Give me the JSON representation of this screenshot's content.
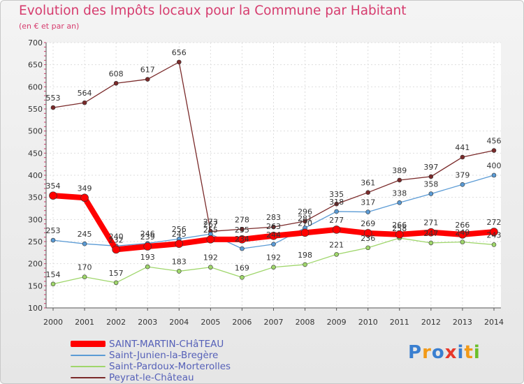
{
  "title": "Evolution des Impôts locaux pour la Commune par Habitant",
  "subtitle": "(en € et par an)",
  "logo": {
    "text": "Proxiti",
    "colors": [
      "#3a7fd0",
      "#f29a18",
      "#3a7fd0",
      "#e8382a",
      "#3a7fd0",
      "#f29a18",
      "#6bbf2a"
    ]
  },
  "chart_data": {
    "type": "line",
    "title": "Evolution des Impôts locaux pour la Commune par Habitant",
    "subtitle": "(en € et par an)",
    "xlabel": "",
    "ylabel": "",
    "x": [
      2000,
      2001,
      2002,
      2003,
      2004,
      2005,
      2006,
      2007,
      2008,
      2009,
      2010,
      2011,
      2012,
      2013,
      2014
    ],
    "y_ticks": [
      100,
      150,
      200,
      250,
      300,
      350,
      400,
      450,
      500,
      550,
      600,
      650,
      700
    ],
    "ylim": [
      100,
      700
    ],
    "grid": true,
    "legend_position": "bottom-left",
    "series": [
      {
        "name": "SAINT-MARTIN-CHâTEAU",
        "color": "#ff0000",
        "values": [
          354,
          349,
          232,
          239,
          245,
          255,
          255,
          263,
          270,
          277,
          269,
          266,
          271,
          266,
          272
        ]
      },
      {
        "name": "Saint-Junien-la-Bregère",
        "color": "#5b9bd5",
        "values": [
          253,
          245,
          240,
          246,
          256,
          267,
          234,
          244,
          281,
          318,
          317,
          338,
          358,
          379,
          400
        ]
      },
      {
        "name": "Saint-Pardoux-Morterolles",
        "color": "#9fd66b",
        "values": [
          154,
          170,
          157,
          193,
          183,
          192,
          169,
          192,
          198,
          221,
          236,
          258,
          247,
          249,
          243
        ]
      },
      {
        "name": "Peyrat-le-Château",
        "color": "#7a2a2a",
        "values": [
          553,
          564,
          608,
          617,
          656,
          273,
          278,
          283,
          296,
          335,
          361,
          389,
          397,
          441,
          456
        ]
      }
    ]
  }
}
